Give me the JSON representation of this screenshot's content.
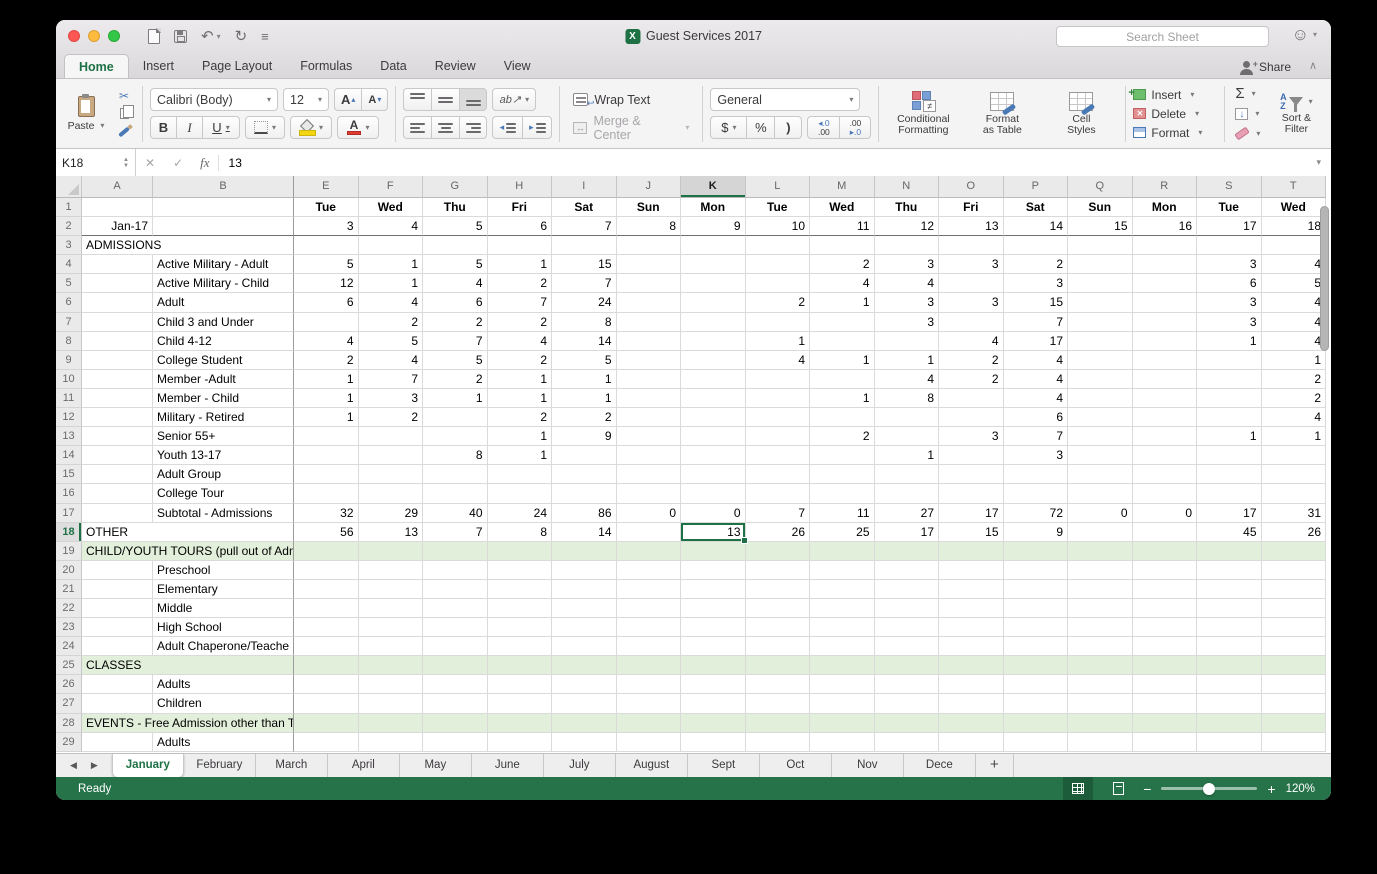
{
  "window": {
    "title": "Guest Services 2017",
    "search_placeholder": "Search Sheet",
    "share_label": "Share"
  },
  "menu_tabs": {
    "items": [
      "Home",
      "Insert",
      "Page Layout",
      "Formulas",
      "Data",
      "Review",
      "View"
    ],
    "active": "Home"
  },
  "ribbon": {
    "paste": "Paste",
    "font_name": "Calibri (Body)",
    "font_size": "12",
    "bold": "B",
    "italic": "I",
    "underline": "U",
    "wrap": "Wrap Text",
    "merge": "Merge & Center",
    "number_format": "General",
    "currency": "$",
    "percent": "%",
    "comma": ")",
    "inc_decimal_top": "◂.0",
    "inc_decimal_bottom": ".00",
    "dec_decimal_top": ".00",
    "dec_decimal_bottom": "▸.0",
    "cf1": "Conditional",
    "cf2": "Formatting",
    "ft1": "Format",
    "ft2": "as Table",
    "cs1": "Cell",
    "cs2": "Styles",
    "insert": "Insert",
    "delete": "Delete",
    "format": "Format",
    "sf1": "Sort &",
    "sf2": "Filter",
    "orientation": "ab↗",
    "az_a": "A",
    "az_z": "Z"
  },
  "glyphs": {
    "dropdown": "▾",
    "scissors": "✂",
    "undo": "↶",
    "redo": "↻",
    "overflow": "≡",
    "sum": "Σ",
    "fill_down": "↓",
    "fx": "fx",
    "cancel": "✕",
    "enter": "✓",
    "stepper_up": "▲",
    "stepper_down": "▼",
    "tab_left": "◀",
    "tab_right": "▶",
    "add_sheet": "+",
    "minus": "−",
    "plus": "+",
    "collapse": "∧",
    "smiley": "☺",
    "a_letter": "A",
    "tri_up": "▴",
    "tri_down": "▾",
    "merge_arrows": "↔",
    "indent_left": "◂",
    "indent_right": "▸",
    "neq": "≠",
    "delete_x": "✕",
    "person_plus": "+"
  },
  "formula_bar": {
    "name_box": "K18",
    "value": "13"
  },
  "grid": {
    "column_headers": [
      "A",
      "B",
      "E",
      "F",
      "G",
      "H",
      "I",
      "J",
      "K",
      "L",
      "M",
      "N",
      "O",
      "P",
      "Q",
      "R",
      "S",
      "T"
    ],
    "selected_column": "K",
    "selected_row": 18,
    "rows": [
      {
        "n": 1,
        "day_header": true,
        "cells": [
          "Tue",
          "Wed",
          "Thu",
          "Fri",
          "Sat",
          "Sun",
          "Mon",
          "Tue",
          "Wed",
          "Thu",
          "Fri",
          "Sat",
          "Sun",
          "Mon",
          "Tue",
          "Wed"
        ]
      },
      {
        "n": 2,
        "a": "Jan-17",
        "a_align": "right",
        "bottom_border": true,
        "cells": [
          "3",
          "4",
          "5",
          "6",
          "7",
          "8",
          "9",
          "10",
          "11",
          "12",
          "13",
          "14",
          "15",
          "16",
          "17",
          "18"
        ]
      },
      {
        "n": 3,
        "a": "ADMISSIONS",
        "span_ab": true
      },
      {
        "n": 4,
        "b": "Active Military - Adult",
        "cells": [
          "5",
          "1",
          "5",
          "1",
          "15",
          "",
          "",
          "",
          "2",
          "3",
          "3",
          "2",
          "",
          "",
          "3",
          "4"
        ]
      },
      {
        "n": 5,
        "b": "Active Military - Child",
        "cells": [
          "12",
          "1",
          "4",
          "2",
          "7",
          "",
          "",
          "",
          "4",
          "4",
          "",
          "3",
          "",
          "",
          "6",
          "5"
        ]
      },
      {
        "n": 6,
        "b": "Adult",
        "cells": [
          "6",
          "4",
          "6",
          "7",
          "24",
          "",
          "",
          "2",
          "1",
          "3",
          "3",
          "15",
          "",
          "",
          "3",
          "4"
        ]
      },
      {
        "n": 7,
        "b": "Child 3 and Under",
        "cells": [
          "",
          "2",
          "2",
          "2",
          "8",
          "",
          "",
          "",
          "",
          "3",
          "",
          "7",
          "",
          "",
          "3",
          "4"
        ]
      },
      {
        "n": 8,
        "b": "Child 4-12",
        "cells": [
          "4",
          "5",
          "7",
          "4",
          "14",
          "",
          "",
          "1",
          "",
          "",
          "4",
          "17",
          "",
          "",
          "1",
          "4"
        ]
      },
      {
        "n": 9,
        "b": "College Student",
        "cells": [
          "2",
          "4",
          "5",
          "2",
          "5",
          "",
          "",
          "4",
          "1",
          "1",
          "2",
          "4",
          "",
          "",
          "",
          "1"
        ]
      },
      {
        "n": 10,
        "b": "Member -Adult",
        "cells": [
          "1",
          "7",
          "2",
          "1",
          "1",
          "",
          "",
          "",
          "",
          "4",
          "2",
          "4",
          "",
          "",
          "",
          "2"
        ]
      },
      {
        "n": 11,
        "b": "Member - Child",
        "cells": [
          "1",
          "3",
          "1",
          "1",
          "1",
          "",
          "",
          "",
          "1",
          "8",
          "",
          "4",
          "",
          "",
          "",
          "2"
        ]
      },
      {
        "n": 12,
        "b": "Military - Retired",
        "cells": [
          "1",
          "2",
          "",
          "2",
          "2",
          "",
          "",
          "",
          "",
          "",
          "",
          "6",
          "",
          "",
          "",
          "4"
        ]
      },
      {
        "n": 13,
        "b": "Senior 55+",
        "cells": [
          "",
          "",
          "",
          "1",
          "9",
          "",
          "",
          "",
          "2",
          "",
          "3",
          "7",
          "",
          "",
          "1",
          "1"
        ]
      },
      {
        "n": 14,
        "b": "Youth 13-17",
        "cells": [
          "",
          "",
          "8",
          "1",
          "",
          "",
          "",
          "",
          "",
          "1",
          "",
          "3",
          "",
          "",
          "",
          ""
        ]
      },
      {
        "n": 15,
        "b": "Adult Group"
      },
      {
        "n": 16,
        "b": "College Tour"
      },
      {
        "n": 17,
        "b": "Subtotal - Admissions",
        "cells": [
          "32",
          "29",
          "40",
          "24",
          "86",
          "0",
          "0",
          "7",
          "11",
          "27",
          "17",
          "72",
          "0",
          "0",
          "17",
          "31"
        ]
      },
      {
        "n": 18,
        "a": "OTHER",
        "span_ab": true,
        "selected_cell_index": 6,
        "cells": [
          "56",
          "13",
          "7",
          "8",
          "14",
          "",
          "13",
          "26",
          "25",
          "17",
          "15",
          "9",
          "",
          "",
          "45",
          "26"
        ]
      },
      {
        "n": 19,
        "a": "CHILD/YOUTH TOURS (pull out of Adm",
        "span_ab": true,
        "green": true
      },
      {
        "n": 20,
        "b": "Preschool"
      },
      {
        "n": 21,
        "b": "Elementary"
      },
      {
        "n": 22,
        "b": "Middle"
      },
      {
        "n": 23,
        "b": "High School"
      },
      {
        "n": 24,
        "b": "Adult Chaperone/Teache"
      },
      {
        "n": 25,
        "a": "CLASSES",
        "span_ab": true,
        "green": true
      },
      {
        "n": 26,
        "b": "Adults"
      },
      {
        "n": 27,
        "b": "Children"
      },
      {
        "n": 28,
        "a": "EVENTS - Free Admission other than T",
        "span_ab": true,
        "green": true
      },
      {
        "n": 29,
        "b": "Adults"
      }
    ]
  },
  "sheet_tabs": {
    "items": [
      "January",
      "February",
      "March",
      "April",
      "May",
      "June",
      "July",
      "August",
      "Sept",
      "Oct",
      "Nov",
      "Dece"
    ],
    "active": "January"
  },
  "status_bar": {
    "ready": "Ready",
    "zoom": "120%"
  }
}
